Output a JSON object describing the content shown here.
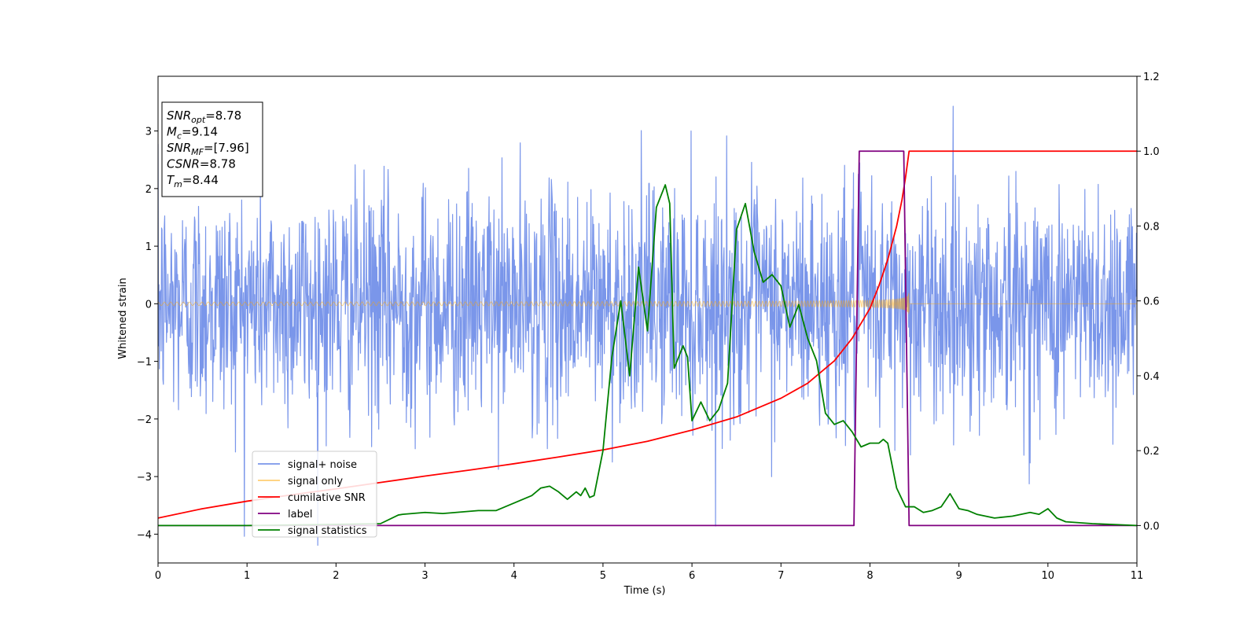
{
  "chart_data": {
    "type": "line",
    "xlabel": "Time (s)",
    "ylabel": "Whitened strain",
    "xlim": [
      0,
      11
    ],
    "ylim": [
      -4.5,
      3.95
    ],
    "y2lim": [
      -0.1,
      1.2
    ],
    "x_ticks": [
      "0",
      "1",
      "2",
      "3",
      "4",
      "5",
      "6",
      "7",
      "8",
      "9",
      "10",
      "11"
    ],
    "y_ticks": [
      "3",
      "2",
      "1",
      "0",
      "−1",
      "−2",
      "−3",
      "−4"
    ],
    "y2_ticks": [
      "1.2",
      "1.0",
      "0.8",
      "0.6",
      "0.4",
      "0.2",
      "0.0"
    ],
    "grid": false,
    "legend_position": "lower-left",
    "annotation": {
      "lines": [
        {
          "sym": "SNR",
          "sub": "opt",
          "value": "=8.78"
        },
        {
          "sym": "M",
          "sub": "c",
          "value": "=9.14"
        },
        {
          "sym": "SNR",
          "sub": "MF",
          "value": "=[7.96]"
        },
        {
          "sym": "CSNR",
          "sub": "",
          "value": "=8.78"
        },
        {
          "sym": "T",
          "sub": "m",
          "value": "=8.44"
        }
      ]
    },
    "series": [
      {
        "name": "signal+ noise",
        "axis": "left",
        "color": "#4169e1",
        "opacity": 0.7,
        "kind": "noise",
        "noise_std": 1.0,
        "noise_range": [
          -4.2,
          3.6
        ],
        "samples": 2200
      },
      {
        "name": "signal only",
        "axis": "left",
        "color": "#ffa500",
        "opacity": 0.5,
        "kind": "chirp",
        "x_range": [
          0,
          8.44
        ],
        "amplitude_start": 0.03,
        "amplitude_end": 0.7,
        "coalescence": 8.44
      },
      {
        "name": "cumilative SNR",
        "axis": "right",
        "color": "#ff0000",
        "x": [
          0.0,
          0.5,
          1.0,
          1.5,
          2.0,
          2.5,
          3.0,
          3.5,
          4.0,
          4.5,
          5.0,
          5.5,
          6.0,
          6.5,
          7.0,
          7.3,
          7.6,
          7.8,
          8.0,
          8.1,
          8.2,
          8.3,
          8.36,
          8.4,
          8.44,
          11.0
        ],
        "y": [
          0.02,
          0.045,
          0.065,
          0.082,
          0.098,
          0.115,
          0.132,
          0.148,
          0.165,
          0.183,
          0.202,
          0.225,
          0.255,
          0.29,
          0.34,
          0.38,
          0.44,
          0.5,
          0.58,
          0.64,
          0.71,
          0.8,
          0.87,
          0.93,
          1.0,
          1.0
        ]
      },
      {
        "name": "label",
        "axis": "right",
        "color": "#800080",
        "x": [
          0.0,
          7.82,
          7.88,
          8.38,
          8.44,
          11.0
        ],
        "y": [
          0.0,
          0.0,
          1.0,
          1.0,
          0.0,
          0.0
        ]
      },
      {
        "name": "signal statistics",
        "axis": "right",
        "color": "#008000",
        "x": [
          0.0,
          1.0,
          2.0,
          2.5,
          2.7,
          2.75,
          3.0,
          3.2,
          3.6,
          3.8,
          3.9,
          4.0,
          4.1,
          4.2,
          4.3,
          4.4,
          4.5,
          4.6,
          4.7,
          4.75,
          4.8,
          4.85,
          4.9,
          5.0,
          5.1,
          5.2,
          5.3,
          5.4,
          5.5,
          5.6,
          5.7,
          5.75,
          5.8,
          5.9,
          5.95,
          6.0,
          6.1,
          6.2,
          6.3,
          6.4,
          6.5,
          6.6,
          6.7,
          6.8,
          6.9,
          7.0,
          7.1,
          7.2,
          7.3,
          7.4,
          7.5,
          7.6,
          7.7,
          7.8,
          7.9,
          8.0,
          8.1,
          8.15,
          8.2,
          8.3,
          8.4,
          8.5,
          8.6,
          8.7,
          8.8,
          8.9,
          9.0,
          9.1,
          9.2,
          9.4,
          9.6,
          9.7,
          9.8,
          9.9,
          10.0,
          10.1,
          10.2,
          10.5,
          11.0
        ],
        "y": [
          0.0,
          0.0,
          0.003,
          0.005,
          0.028,
          0.03,
          0.035,
          0.032,
          0.04,
          0.04,
          0.05,
          0.06,
          0.07,
          0.08,
          0.1,
          0.105,
          0.09,
          0.07,
          0.09,
          0.08,
          0.1,
          0.075,
          0.08,
          0.2,
          0.45,
          0.6,
          0.4,
          0.69,
          0.52,
          0.85,
          0.91,
          0.86,
          0.42,
          0.48,
          0.45,
          0.28,
          0.33,
          0.28,
          0.31,
          0.38,
          0.79,
          0.86,
          0.73,
          0.65,
          0.67,
          0.64,
          0.53,
          0.59,
          0.5,
          0.44,
          0.3,
          0.27,
          0.28,
          0.25,
          0.21,
          0.22,
          0.22,
          0.23,
          0.22,
          0.1,
          0.05,
          0.05,
          0.035,
          0.04,
          0.05,
          0.085,
          0.045,
          0.04,
          0.03,
          0.02,
          0.025,
          0.03,
          0.035,
          0.03,
          0.045,
          0.02,
          0.01,
          0.005,
          0.0
        ]
      }
    ]
  }
}
